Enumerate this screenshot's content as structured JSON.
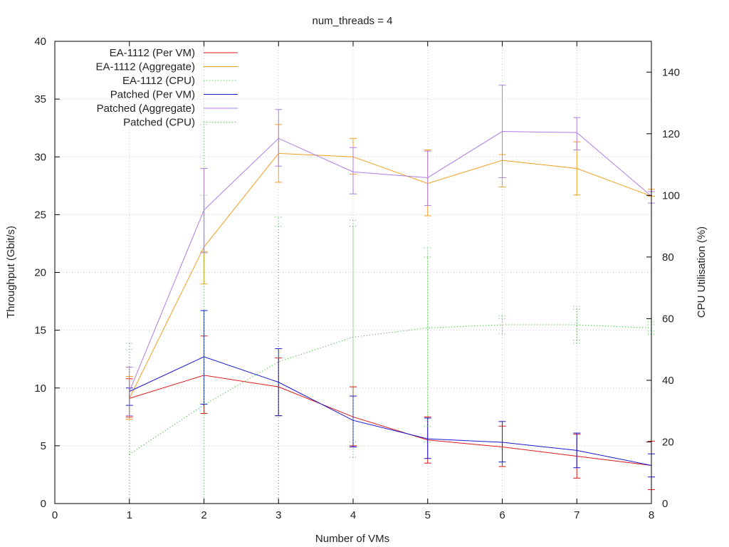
{
  "chart_data": {
    "type": "line",
    "title": "num_threads = 4",
    "xlabel": "Number of VMs",
    "ylabel": "Throughput (Gbit/s)",
    "y2label": "CPU Utilisation (%)",
    "xlim": [
      0,
      8
    ],
    "ylim": [
      0,
      40
    ],
    "y2lim": [
      0,
      150
    ],
    "xticks": [
      0,
      1,
      2,
      3,
      4,
      5,
      6,
      7,
      8
    ],
    "yticks": [
      0,
      5,
      10,
      15,
      20,
      25,
      30,
      35,
      40
    ],
    "y2ticks": [
      0,
      20,
      40,
      60,
      80,
      100,
      120,
      140
    ],
    "grid": true,
    "legend_position": "top-left",
    "series": [
      {
        "name": "EA-1112 (Per VM)",
        "axis": "y",
        "color": "#e01818",
        "style": "solid",
        "x": [
          1,
          2,
          3,
          4,
          5,
          6,
          7,
          8
        ],
        "y": [
          9.1,
          11.1,
          10.1,
          7.5,
          5.5,
          4.9,
          4.1,
          3.3
        ],
        "err_low": [
          7.5,
          7.8,
          7.6,
          5.0,
          3.5,
          3.2,
          2.2,
          1.2
        ],
        "err_high": [
          10.8,
          14.5,
          12.6,
          10.1,
          7.5,
          6.7,
          6.0,
          5.4
        ]
      },
      {
        "name": "EA-1112 (Aggregate)",
        "axis": "y",
        "color": "#f0a020",
        "style": "solid",
        "x": [
          1,
          2,
          3,
          4,
          5,
          6,
          7,
          8
        ],
        "y": [
          9.1,
          22.2,
          30.3,
          30.0,
          27.7,
          29.7,
          29.0,
          26.6
        ],
        "err_low": [
          7.3,
          19.0,
          27.8,
          28.5,
          24.9,
          27.4,
          26.7,
          26.6
        ],
        "err_high": [
          11.0,
          21.8,
          32.8,
          31.6,
          30.6,
          30.2,
          31.3,
          27.2
        ]
      },
      {
        "name": "EA-1112 (CPU)",
        "axis": "y2",
        "color": "#40c040",
        "style": "dotted",
        "x": [
          1,
          2,
          3,
          4,
          5,
          6,
          7,
          8
        ],
        "y": [
          16,
          32,
          46,
          54,
          57,
          58,
          58,
          57
        ],
        "err_low": [
          0,
          0,
          0,
          15,
          20,
          55,
          52,
          55
        ],
        "err_high": [
          52,
          123,
          93,
          92,
          83,
          61,
          64,
          59
        ]
      },
      {
        "name": "Patched (Per VM)",
        "axis": "y",
        "color": "#1818d0",
        "style": "solid",
        "x": [
          1,
          2,
          3,
          4,
          5,
          6,
          7,
          8
        ],
        "y": [
          9.7,
          12.7,
          10.5,
          7.2,
          5.6,
          5.3,
          4.6,
          3.3
        ],
        "err_low": [
          8.5,
          8.6,
          7.6,
          4.9,
          3.9,
          3.6,
          3.1,
          2.3
        ],
        "err_high": [
          10.0,
          16.7,
          13.4,
          9.3,
          7.4,
          7.1,
          6.1,
          4.3
        ]
      },
      {
        "name": "Patched (Aggregate)",
        "axis": "y",
        "color": "#b07ce0",
        "style": "solid",
        "x": [
          1,
          2,
          3,
          4,
          5,
          6,
          7,
          8
        ],
        "y": [
          9.7,
          25.4,
          31.6,
          28.7,
          28.2,
          32.2,
          32.1,
          26.6
        ],
        "err_low": [
          7.6,
          21.7,
          29.2,
          26.8,
          25.8,
          28.2,
          30.6,
          26.0
        ],
        "err_high": [
          11.8,
          29.0,
          34.1,
          30.8,
          30.5,
          36.2,
          33.4,
          27.0
        ]
      },
      {
        "name": "Patched (CPU)",
        "axis": "y2",
        "color": "#40c040",
        "style": "dotted",
        "x": [
          1,
          2,
          3,
          4,
          5,
          6,
          7,
          8
        ],
        "y": [
          16,
          32,
          46,
          54,
          57,
          58,
          58,
          57
        ],
        "err_low": [
          0,
          0,
          0,
          20,
          25,
          55,
          53,
          56
        ],
        "err_high": [
          50,
          100,
          90,
          90,
          80,
          60,
          63,
          58
        ]
      }
    ]
  }
}
